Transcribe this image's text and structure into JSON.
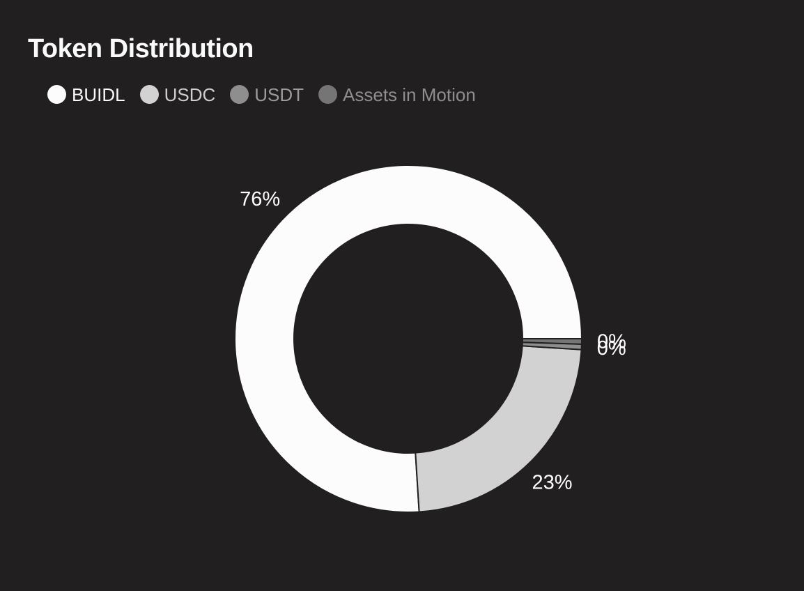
{
  "card": {
    "title": "Token Distribution"
  },
  "chart_data": {
    "type": "pie",
    "subtype": "donut",
    "title": "Token Distribution",
    "legend_position": "top-left",
    "direction": "counterclockwise",
    "start_angle_deg": 0,
    "background_color": "#211f1f",
    "slice_stroke_color": "#211f1f",
    "label_color": "#ffffff",
    "series": [
      {
        "name": "BUIDL",
        "value": 76,
        "percent_label": "76%",
        "color": "#fcfcfc",
        "legend_text_color": "#fafafa"
      },
      {
        "name": "USDC",
        "value": 23,
        "percent_label": "23%",
        "color": "#d2d2d2",
        "legend_text_color": "#cfcfcf"
      },
      {
        "name": "USDT",
        "value": 0,
        "render_value": 0.5,
        "percent_label": "0%",
        "color": "#8e8e8e",
        "legend_text_color": "#9c9c9c"
      },
      {
        "name": "Assets in Motion",
        "value": 0,
        "render_value": 0.5,
        "percent_label": "0%",
        "color": "#757575",
        "legend_text_color": "#8e8e8e"
      }
    ]
  }
}
